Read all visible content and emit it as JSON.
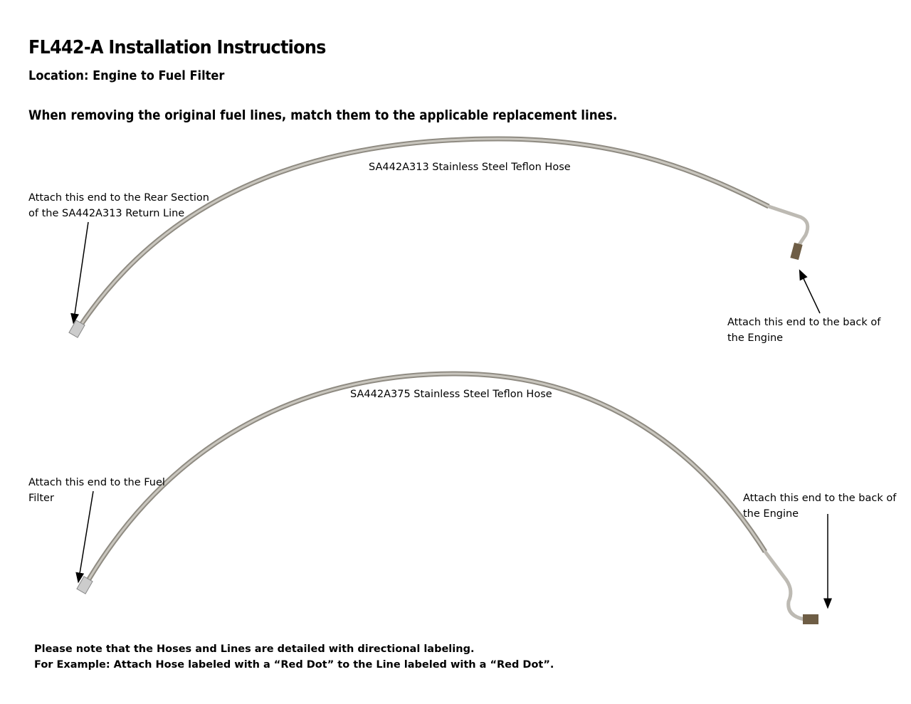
{
  "document": {
    "title": "FL442-A Installation Instructions",
    "location": "Location: Engine to Fuel Filter",
    "intro": "When removing the original fuel lines, match them to the applicable replacement lines."
  },
  "hoses": [
    {
      "name": "SA442A313 Stainless Steel Teflon Hose",
      "left_end": [
        "Attach this end to the Rear Section",
        "of the SA442A313 Return Line"
      ],
      "right_end": [
        "Attach this end to the back of",
        "the Engine"
      ]
    },
    {
      "name": "SA442A375 Stainless Steel Teflon Hose",
      "left_end": [
        "Attach this end to the Fuel",
        "Filter"
      ],
      "right_end": [
        "Attach this end to the back of",
        "the Engine"
      ]
    }
  ],
  "notes": [
    "Please note that the Hoses and Lines are detailed with directional labeling.",
    "For Example: Attach Hose labeled with a “Red Dot” to the Line labeled with a “Red Dot”."
  ],
  "colors": {
    "hose": "#a9a59c",
    "tube": "#bdbab3",
    "fitting": "#6e5d45"
  }
}
